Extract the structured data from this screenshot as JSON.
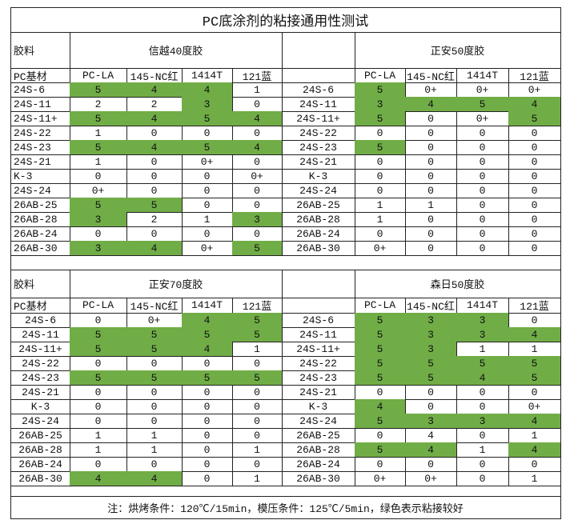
{
  "title": "PC底涂剂的粘接通用性测试",
  "note": "注：烘烤条件：120℃/15min，模压条件：125℃/5min，绿色表示粘接较好",
  "highlight_color": "#70ad47",
  "sections": [
    {
      "material_label": "胶料",
      "base_label": "PC基材",
      "groups": [
        {
          "name": "信越40度胶",
          "columns": [
            "PC-LA",
            "145-NC红",
            "1414T",
            "121蓝"
          ],
          "rows": [
            {
              "label": "24S-6",
              "values": [
                "5",
                "4",
                "4",
                "1"
              ],
              "green": [
                1,
                1,
                1,
                0
              ]
            },
            {
              "label": "24S-11",
              "values": [
                "2",
                "2",
                "3",
                "0"
              ],
              "green": [
                0,
                0,
                1,
                0
              ]
            },
            {
              "label": "24S-11+",
              "values": [
                "5",
                "4",
                "5",
                "4"
              ],
              "green": [
                1,
                1,
                1,
                1
              ]
            },
            {
              "label": "24S-22",
              "values": [
                "1",
                "0",
                "0",
                "0"
              ],
              "green": [
                0,
                0,
                0,
                0
              ]
            },
            {
              "label": "24S-23",
              "values": [
                "5",
                "4",
                "5",
                "4"
              ],
              "green": [
                1,
                1,
                1,
                1
              ]
            },
            {
              "label": "24S-21",
              "values": [
                "1",
                "0",
                "0+",
                "0"
              ],
              "green": [
                0,
                0,
                0,
                0
              ]
            },
            {
              "label": "K-3",
              "values": [
                "0",
                "0",
                "0",
                "0+"
              ],
              "green": [
                0,
                0,
                0,
                0
              ]
            },
            {
              "label": "24S-24",
              "values": [
                "0+",
                "0",
                "0",
                "0"
              ],
              "green": [
                0,
                0,
                0,
                0
              ]
            },
            {
              "label": "26AB-25",
              "values": [
                "5",
                "5",
                "0",
                "0"
              ],
              "green": [
                1,
                1,
                0,
                0
              ]
            },
            {
              "label": "26AB-28",
              "values": [
                "3",
                "2",
                "1",
                "3"
              ],
              "green": [
                1,
                0,
                0,
                1
              ]
            },
            {
              "label": "26AB-24",
              "values": [
                "0",
                "0",
                "0",
                "0"
              ],
              "green": [
                0,
                0,
                0,
                0
              ]
            },
            {
              "label": "26AB-30",
              "values": [
                "3",
                "4",
                "0+",
                "5"
              ],
              "green": [
                1,
                1,
                0,
                1
              ]
            }
          ]
        },
        {
          "name": "正安50度胶",
          "columns": [
            "PC-LA",
            "145-NC红",
            "1414T",
            "121蓝"
          ],
          "rows": [
            {
              "label": "24S-6",
              "values": [
                "5",
                "0+",
                "0+",
                "0+"
              ],
              "green": [
                1,
                0,
                0,
                0
              ]
            },
            {
              "label": "24S-11",
              "values": [
                "3",
                "4",
                "5",
                "4"
              ],
              "green": [
                1,
                1,
                1,
                1
              ]
            },
            {
              "label": "24S-11+",
              "values": [
                "5",
                "0",
                "0+",
                "5"
              ],
              "green": [
                1,
                0,
                0,
                1
              ]
            },
            {
              "label": "24S-22",
              "values": [
                "0",
                "0",
                "0",
                "0"
              ],
              "green": [
                0,
                0,
                0,
                0
              ]
            },
            {
              "label": "24S-23",
              "values": [
                "5",
                "0",
                "0",
                "0"
              ],
              "green": [
                1,
                0,
                0,
                0
              ]
            },
            {
              "label": "24S-21",
              "values": [
                "0",
                "0",
                "0",
                "0"
              ],
              "green": [
                0,
                0,
                0,
                0
              ]
            },
            {
              "label": "K-3",
              "values": [
                "0",
                "0",
                "0",
                "0"
              ],
              "green": [
                0,
                0,
                0,
                0
              ]
            },
            {
              "label": "24S-24",
              "values": [
                "0",
                "0",
                "0",
                "0"
              ],
              "green": [
                0,
                0,
                0,
                0
              ]
            },
            {
              "label": "26AB-25",
              "values": [
                "1",
                "1",
                "0",
                "0"
              ],
              "green": [
                0,
                0,
                0,
                0
              ]
            },
            {
              "label": "26AB-28",
              "values": [
                "1",
                "0",
                "0",
                "0"
              ],
              "green": [
                0,
                0,
                0,
                0
              ]
            },
            {
              "label": "26AB-24",
              "values": [
                "0",
                "0",
                "0",
                "0"
              ],
              "green": [
                0,
                0,
                0,
                0
              ]
            },
            {
              "label": "26AB-30",
              "values": [
                "0+",
                "0",
                "0",
                "0"
              ],
              "green": [
                0,
                0,
                0,
                0
              ]
            }
          ]
        }
      ]
    },
    {
      "material_label": "胶料",
      "base_label": "PC基材",
      "groups": [
        {
          "name": "正安70度胶",
          "columns": [
            "PC-LA",
            "145-NC红",
            "1414T",
            "121蓝"
          ],
          "rows": [
            {
              "label": "24S-6",
              "values": [
                "0",
                "0+",
                "4",
                "5"
              ],
              "green": [
                0,
                0,
                1,
                1
              ]
            },
            {
              "label": "24S-11",
              "values": [
                "5",
                "5",
                "5",
                "5"
              ],
              "green": [
                1,
                1,
                1,
                1
              ]
            },
            {
              "label": "24S-11+",
              "values": [
                "5",
                "5",
                "4",
                "1"
              ],
              "green": [
                1,
                1,
                1,
                0
              ]
            },
            {
              "label": "24S-22",
              "values": [
                "0",
                "0",
                "0",
                "0"
              ],
              "green": [
                0,
                0,
                0,
                0
              ]
            },
            {
              "label": "24S-23",
              "values": [
                "5",
                "5",
                "5",
                "5"
              ],
              "green": [
                1,
                1,
                1,
                1
              ]
            },
            {
              "label": "24S-21",
              "values": [
                "0",
                "0",
                "0",
                "0"
              ],
              "green": [
                0,
                0,
                0,
                0
              ]
            },
            {
              "label": "K-3",
              "values": [
                "0",
                "0",
                "0",
                "0"
              ],
              "green": [
                0,
                0,
                0,
                0
              ]
            },
            {
              "label": "24S-24",
              "values": [
                "0",
                "0",
                "0",
                "0"
              ],
              "green": [
                0,
                0,
                0,
                0
              ]
            },
            {
              "label": "26AB-25",
              "values": [
                "1",
                "1",
                "0",
                "0"
              ],
              "green": [
                0,
                0,
                0,
                0
              ]
            },
            {
              "label": "26AB-28",
              "values": [
                "1",
                "1",
                "0",
                "1"
              ],
              "green": [
                0,
                0,
                0,
                0
              ]
            },
            {
              "label": "26AB-24",
              "values": [
                "0",
                "0",
                "0",
                "0"
              ],
              "green": [
                0,
                0,
                0,
                0
              ]
            },
            {
              "label": "26AB-30",
              "values": [
                "4",
                "4",
                "0",
                "1"
              ],
              "green": [
                1,
                1,
                0,
                0
              ]
            }
          ]
        },
        {
          "name": "森日50度胶",
          "columns": [
            "PC-LA",
            "145-NC红",
            "1414T",
            "121蓝"
          ],
          "rows": [
            {
              "label": "24S-6",
              "values": [
                "5",
                "3",
                "3",
                "0"
              ],
              "green": [
                1,
                1,
                1,
                0
              ]
            },
            {
              "label": "24S-11",
              "values": [
                "5",
                "3",
                "3",
                "4"
              ],
              "green": [
                1,
                1,
                1,
                1
              ]
            },
            {
              "label": "24S-11+",
              "values": [
                "5",
                "3",
                "1",
                "1"
              ],
              "green": [
                1,
                1,
                0,
                0
              ]
            },
            {
              "label": "24S-22",
              "values": [
                "5",
                "5",
                "5",
                "5"
              ],
              "green": [
                1,
                1,
                1,
                1
              ]
            },
            {
              "label": "24S-23",
              "values": [
                "5",
                "5",
                "4",
                "5"
              ],
              "green": [
                1,
                1,
                1,
                1
              ]
            },
            {
              "label": "24S-21",
              "values": [
                "0",
                "0",
                "0",
                "0"
              ],
              "green": [
                0,
                0,
                0,
                0
              ]
            },
            {
              "label": "K-3",
              "values": [
                "4",
                "0",
                "0",
                "0+"
              ],
              "green": [
                1,
                0,
                0,
                0
              ]
            },
            {
              "label": "24S-24",
              "values": [
                "5",
                "3",
                "3",
                "4"
              ],
              "green": [
                1,
                1,
                1,
                1
              ]
            },
            {
              "label": "26AB-25",
              "values": [
                "0",
                "4",
                "0",
                "1"
              ],
              "green": [
                0,
                0,
                0,
                0
              ]
            },
            {
              "label": "26AB-28",
              "values": [
                "5",
                "4",
                "1",
                "4"
              ],
              "green": [
                1,
                1,
                0,
                1
              ]
            },
            {
              "label": "26AB-24",
              "values": [
                "0",
                "0",
                "0",
                "0"
              ],
              "green": [
                0,
                0,
                0,
                0
              ]
            },
            {
              "label": "26AB-30",
              "values": [
                "0+",
                "0+",
                "0",
                "1"
              ],
              "green": [
                0,
                0,
                0,
                0
              ]
            }
          ]
        }
      ]
    }
  ]
}
